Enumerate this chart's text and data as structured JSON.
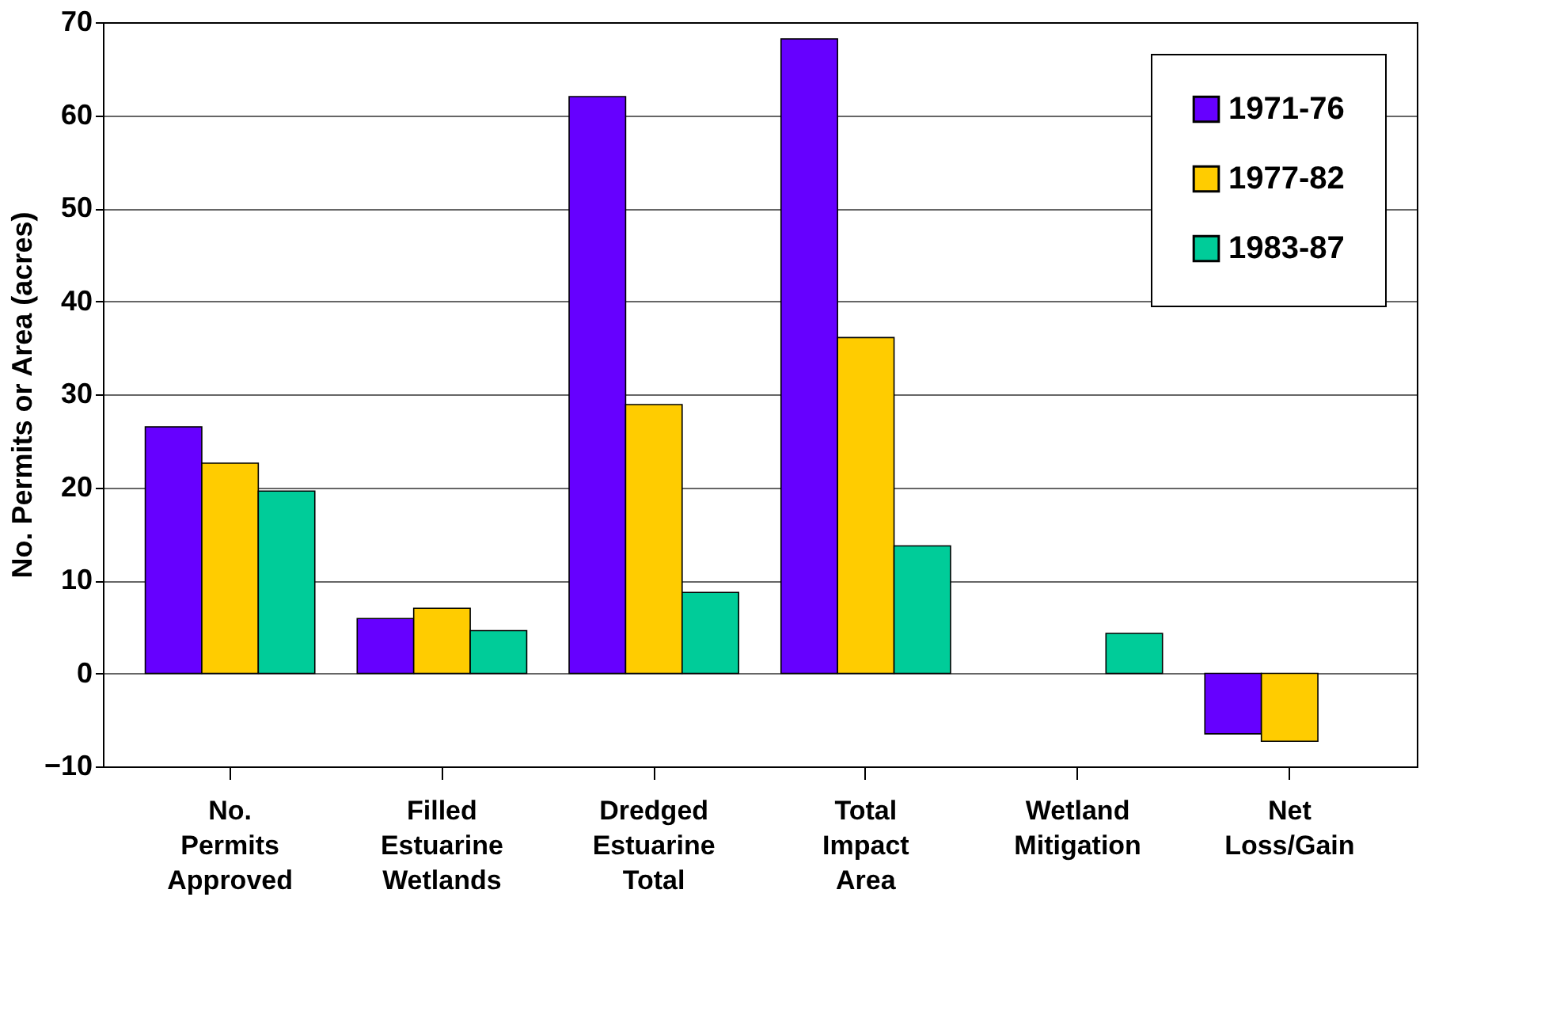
{
  "chart_data": {
    "type": "bar",
    "ylabel": "No. Permits or Area (acres)",
    "categories": [
      "No. Permits Approved",
      "Filled Estuarine Wetlands",
      "Dredged Estuarine Total",
      "Total Impact Area",
      "Wetland Mitigation",
      "Net Loss/Gain"
    ],
    "series": [
      {
        "name": "1971-76",
        "color": "#6600ff",
        "values": [
          26.5,
          5.9,
          62,
          68.2,
          0,
          -6.5
        ]
      },
      {
        "name": "1977-82",
        "color": "#ffcc00",
        "values": [
          22.6,
          7,
          28.9,
          36.1,
          0,
          -7.3
        ]
      },
      {
        "name": "1983-87",
        "color": "#00cc99",
        "values": [
          19.6,
          4.6,
          8.7,
          13.7,
          4.3,
          0
        ]
      }
    ],
    "ylim": [
      -10,
      70
    ],
    "yticks": [
      -10,
      0,
      10,
      20,
      30,
      40,
      50,
      60,
      70
    ],
    "grid": "y",
    "legend": "top right"
  }
}
